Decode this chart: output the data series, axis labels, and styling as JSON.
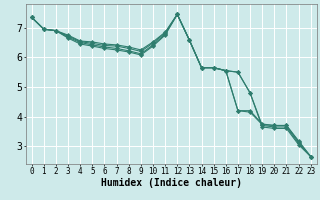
{
  "bg_color": "#ceeaea",
  "grid_color": "#ffffff",
  "line_color": "#2e7d6e",
  "xlabel": "Humidex (Indice chaleur)",
  "xlabel_fontsize": 7,
  "ytick_fontsize": 7,
  "xtick_fontsize": 5.5,
  "ylim": [
    2.4,
    7.8
  ],
  "xlim": [
    -0.5,
    23.5
  ],
  "series": [
    [
      7.35,
      6.95,
      6.9,
      6.65,
      6.45,
      6.38,
      6.3,
      6.25,
      6.18,
      6.08,
      6.38,
      6.75,
      7.45,
      6.58,
      5.65,
      5.65,
      5.55,
      5.5,
      4.8,
      3.65,
      3.6,
      3.6,
      3.05,
      2.65
    ],
    [
      7.35,
      6.95,
      6.9,
      6.68,
      6.5,
      6.42,
      6.35,
      6.3,
      6.22,
      6.12,
      6.42,
      6.78,
      7.45,
      6.58,
      5.65,
      5.65,
      5.55,
      5.5,
      4.8,
      3.7,
      3.65,
      3.65,
      3.1,
      2.65
    ],
    [
      7.35,
      6.95,
      6.9,
      6.72,
      6.53,
      6.47,
      6.4,
      6.38,
      6.3,
      6.2,
      6.48,
      6.82,
      7.45,
      6.58,
      5.65,
      5.65,
      5.55,
      4.2,
      4.15,
      3.73,
      3.7,
      3.7,
      3.15,
      2.65
    ],
    [
      7.35,
      6.95,
      6.9,
      6.75,
      6.55,
      6.52,
      6.45,
      6.42,
      6.35,
      6.25,
      6.52,
      6.85,
      7.45,
      6.58,
      5.65,
      5.65,
      5.55,
      4.2,
      4.2,
      3.75,
      3.7,
      3.7,
      3.18,
      2.65
    ]
  ],
  "yticks": [
    3,
    4,
    5,
    6,
    7
  ],
  "xticks": [
    0,
    1,
    2,
    3,
    4,
    5,
    6,
    7,
    8,
    9,
    10,
    11,
    12,
    13,
    14,
    15,
    16,
    17,
    18,
    19,
    20,
    21,
    22,
    23
  ]
}
